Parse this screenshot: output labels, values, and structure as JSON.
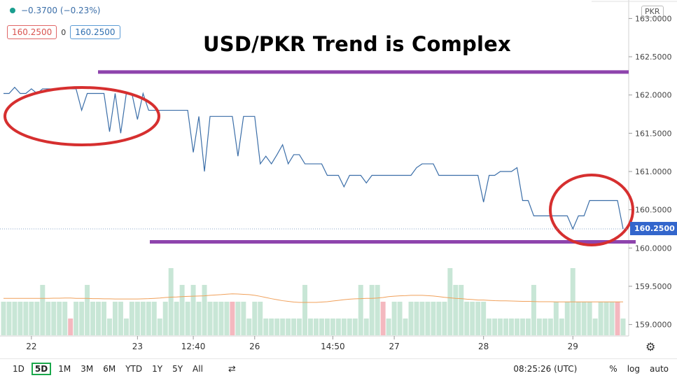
{
  "legend": {
    "change": "−0.3700 (−0.23%)"
  },
  "prices": {
    "bid": "160.2500",
    "spread": "0",
    "ask": "160.2500"
  },
  "currency": "PKR",
  "title": "USD/PKR Trend is Complex",
  "current_price_label": "160.2500",
  "colors": {
    "line": "#3b6ea8",
    "vol_up": "#c8e6d6",
    "vol_down": "#f4b8bf",
    "ma": "#f0a05a",
    "annotation": "#d62f2f",
    "level": "#8e44ad"
  },
  "ranges": [
    "1D",
    "5D",
    "1M",
    "3M",
    "6M",
    "YTD",
    "1Y",
    "5Y",
    "All"
  ],
  "active_range": "5D",
  "clock": "08:25:26 (UTC)",
  "scale_options": [
    "%",
    "log",
    "auto"
  ],
  "icons": {
    "compare": "compare-icon",
    "settings": "gear-icon"
  },
  "chart_data": {
    "type": "line",
    "title": "USD/PKR Trend is Complex",
    "ylim": [
      158.85,
      163.15
    ],
    "y_ticks": [
      163.0,
      162.5,
      162.0,
      161.5,
      161.0,
      160.5,
      160.0,
      159.5,
      159.0
    ],
    "y_tick_labels": [
      "163.0000",
      "162.5000",
      "162.0000",
      "161.5000",
      "161.0000",
      "160.5000",
      "160.0000",
      "159.5000",
      "159.0000"
    ],
    "x_tick_labels": [
      "22",
      "23",
      "12:40",
      "26",
      "14:50",
      "27",
      "28",
      "29"
    ],
    "x_tick_index": [
      5,
      24,
      34,
      45,
      59,
      70,
      86,
      102
    ],
    "series": [
      {
        "values": [
          162.02,
          162.02,
          162.1,
          162.02,
          162.02,
          162.08,
          162.02,
          162.08,
          162.08,
          162.08,
          162.08,
          162.08,
          162.08,
          162.08,
          161.8,
          162.02,
          162.02,
          162.02,
          162.02,
          161.52,
          162.02,
          161.5,
          162.02,
          162.02,
          161.68,
          162.02,
          161.8,
          161.8,
          161.8,
          161.8,
          161.8,
          161.8,
          161.8,
          161.8,
          161.25,
          161.72,
          161.0,
          161.72,
          161.72,
          161.72,
          161.72,
          161.72,
          161.2,
          161.72,
          161.72,
          161.72,
          161.1,
          161.2,
          161.1,
          161.22,
          161.35,
          161.1,
          161.22,
          161.22,
          161.1,
          161.1,
          161.1,
          161.1,
          160.95,
          160.95,
          160.95,
          160.8,
          160.95,
          160.95,
          160.95,
          160.85,
          160.95,
          160.95,
          160.95,
          160.95,
          160.95,
          160.95,
          160.95,
          160.95,
          161.05,
          161.1,
          161.1,
          161.1,
          160.95,
          160.95,
          160.95,
          160.95,
          160.95,
          160.95,
          160.95,
          160.95,
          160.6,
          160.95,
          160.95,
          161.0,
          161.0,
          161.0,
          161.05,
          160.62,
          160.62,
          160.42,
          160.42,
          160.42,
          160.42,
          160.42,
          160.42,
          160.42,
          160.25,
          160.42,
          160.42,
          160.62,
          160.62,
          160.62,
          160.62,
          160.62,
          160.62,
          160.25
        ],
        "volume": [
          2,
          2,
          2,
          2,
          2,
          2,
          2,
          3,
          2,
          2,
          2,
          2,
          1,
          2,
          2,
          3,
          2,
          2,
          2,
          1,
          2,
          2,
          1,
          2,
          2,
          2,
          2,
          2,
          1,
          2,
          4,
          2,
          3,
          2,
          3,
          2,
          3,
          2,
          2,
          2,
          2,
          2,
          2,
          2,
          1,
          2,
          2,
          1,
          1,
          1,
          1,
          1,
          1,
          1,
          3,
          1,
          1,
          1,
          1,
          1,
          1,
          1,
          1,
          1,
          3,
          1,
          3,
          3,
          2,
          1,
          2,
          2,
          1,
          2,
          2,
          2,
          2,
          2,
          2,
          2,
          4,
          3,
          3,
          2,
          2,
          2,
          2,
          1,
          1,
          1,
          1,
          1,
          1,
          1,
          1,
          3,
          1,
          1,
          1,
          2,
          1,
          2,
          4,
          2,
          2,
          2,
          1,
          2,
          2,
          2,
          2,
          1
        ],
        "down_bars": [
          12,
          41,
          68,
          110
        ],
        "ma": [
          2.2,
          2.2,
          2.2,
          2.2,
          2.2,
          2.2,
          2.2,
          2.2,
          2.2,
          2.21,
          2.21,
          2.22,
          2.22,
          2.2,
          2.2,
          2.2,
          2.18,
          2.18,
          2.17,
          2.17,
          2.16,
          2.16,
          2.16,
          2.16,
          2.16,
          2.17,
          2.18,
          2.2,
          2.22,
          2.25,
          2.27,
          2.28,
          2.3,
          2.32,
          2.33,
          2.34,
          2.35,
          2.38,
          2.4,
          2.42,
          2.45,
          2.47,
          2.46,
          2.44,
          2.42,
          2.38,
          2.32,
          2.25,
          2.18,
          2.12,
          2.06,
          2.02,
          1.98,
          1.96,
          1.96,
          1.96,
          1.96,
          1.98,
          2.0,
          2.04,
          2.08,
          2.12,
          2.15,
          2.17,
          2.18,
          2.2,
          2.2,
          2.22,
          2.25,
          2.3,
          2.33,
          2.35,
          2.36,
          2.38,
          2.38,
          2.38,
          2.36,
          2.34,
          2.3,
          2.26,
          2.23,
          2.2,
          2.18,
          2.15,
          2.13,
          2.1,
          2.1,
          2.08,
          2.06,
          2.05,
          2.05,
          2.04,
          2.03,
          2.02,
          2.02,
          2.01,
          2.0,
          2.0,
          2.0,
          1.99,
          1.99,
          1.99,
          1.99,
          1.99,
          1.99,
          1.99,
          1.99,
          1.99,
          1.99,
          1.99,
          1.99,
          1.99
        ]
      }
    ],
    "annotations": {
      "resistance": 162.3,
      "support": 160.08
    }
  }
}
